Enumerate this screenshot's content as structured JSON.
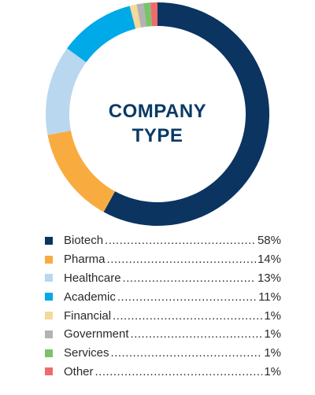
{
  "chart_data": {
    "type": "pie",
    "title": "COMPANY TYPE",
    "title_lines": [
      "COMPANY",
      "TYPE"
    ],
    "series": [
      {
        "name": "Biotech",
        "value": 58,
        "label": "58%",
        "color": "#0b3461"
      },
      {
        "name": "Pharma",
        "value": 14,
        "label": "14%",
        "color": "#f8ac40"
      },
      {
        "name": "Healthcare",
        "value": 13,
        "label": "13%",
        "color": "#b9d7ef"
      },
      {
        "name": "Academic",
        "value": 11,
        "label": "11%",
        "color": "#00a9e7"
      },
      {
        "name": "Financial",
        "value": 1,
        "label": "1%",
        "color": "#f5d89a"
      },
      {
        "name": "Government",
        "value": 1,
        "label": "1%",
        "color": "#b3b3b3"
      },
      {
        "name": "Services",
        "value": 1,
        "label": "1%",
        "color": "#7cc26b"
      },
      {
        "name": "Other",
        "value": 1,
        "label": "1%",
        "color": "#ef6b6b"
      }
    ],
    "legend_position": "bottom"
  }
}
